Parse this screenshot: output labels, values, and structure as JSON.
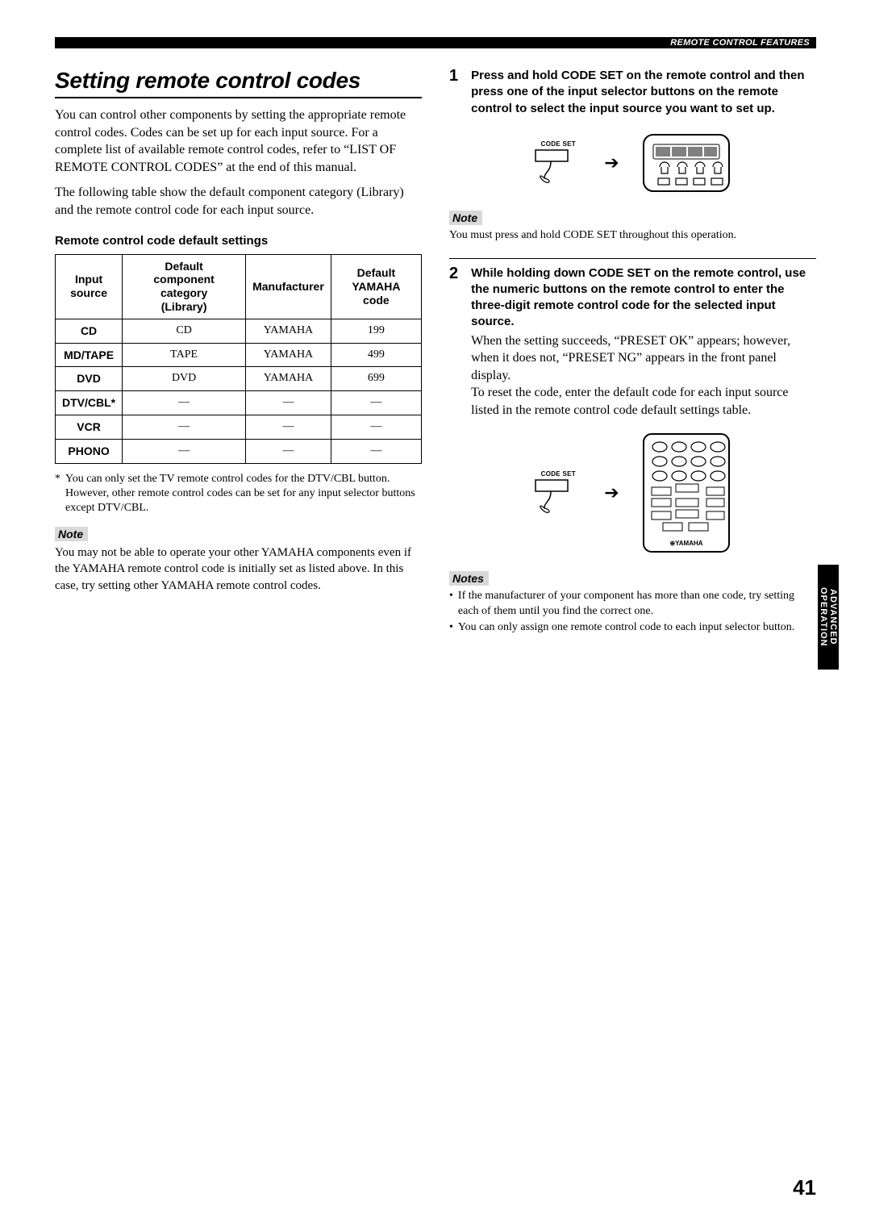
{
  "header": {
    "label": "REMOTE CONTROL FEATURES"
  },
  "sideTab": {
    "line1": "ADVANCED",
    "line2": "OPERATION"
  },
  "pageNumber": "41",
  "left": {
    "title": "Setting remote control codes",
    "intro1": "You can control other components by setting the appropriate remote control codes. Codes can be set up for each input source. For a complete list of available remote control codes, refer to “LIST OF REMOTE CONTROL CODES” at the end of this manual.",
    "intro2": "The following table show the default component category (Library) and the remote control code for each input source.",
    "subhead": "Remote control code default settings",
    "table": {
      "columns": [
        "Input source",
        "Default component category (Library)",
        "Manufacturer",
        "Default YAMAHA code"
      ],
      "rows": [
        [
          "CD",
          "CD",
          "YAMAHA",
          "199"
        ],
        [
          "MD/TAPE",
          "TAPE",
          "YAMAHA",
          "499"
        ],
        [
          "DVD",
          "DVD",
          "YAMAHA",
          "699"
        ],
        [
          "DTV/CBL*",
          "—",
          "—",
          "—"
        ],
        [
          "VCR",
          "—",
          "—",
          "—"
        ],
        [
          "PHONO",
          "—",
          "—",
          "—"
        ]
      ]
    },
    "footnote": "You can only set the TV remote control codes for the DTV/CBL button. However, other remote control codes can be set for any input selector buttons except DTV/CBL.",
    "noteLabel": "Note",
    "noteBody": "You may not be able to operate your other YAMAHA components even if the YAMAHA remote control code is initially set as listed above. In this case, try setting other YAMAHA remote control codes."
  },
  "right": {
    "steps": [
      {
        "num": "1",
        "bold": "Press and hold CODE SET on the remote control and then press one of the input selector buttons on the remote control to select the input source you want to set up.",
        "plain": "",
        "codeSetLabel": "CODE SET",
        "noteLabel": "Note",
        "noteBody": "You must press and hold CODE SET throughout this operation."
      },
      {
        "num": "2",
        "bold": "While holding down CODE SET on the remote control, use the numeric buttons on the remote control to enter the three-digit remote control code for the selected input source.",
        "plain": "When the setting succeeds, “PRESET OK” appears; however, when it does not, “PRESET NG” appears in the front panel display.\nTo reset the code, enter the default code for each input source listed in the remote control code default settings table.",
        "codeSetLabel": "CODE SET"
      }
    ],
    "notesLabel": "Notes",
    "notesBullets": [
      "If the manufacturer of your component has more than one code, try setting each of them until you find the correct one.",
      "You can only assign one remote control code to each input selector button."
    ],
    "remoteBrand": "YAMAHA"
  }
}
